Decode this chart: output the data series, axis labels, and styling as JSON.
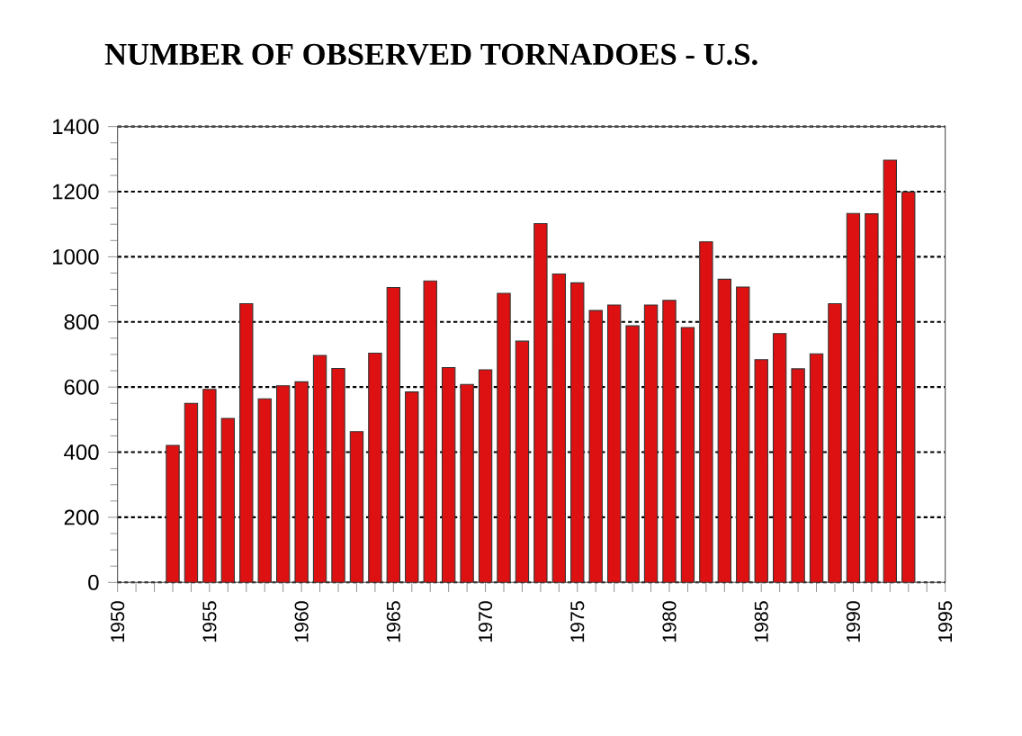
{
  "chart_data": {
    "type": "bar",
    "title": "NUMBER OF OBSERVED TORNADOES  - U.S.",
    "x": [
      1953,
      1954,
      1955,
      1956,
      1957,
      1958,
      1959,
      1960,
      1961,
      1962,
      1963,
      1964,
      1965,
      1966,
      1967,
      1968,
      1969,
      1970,
      1971,
      1972,
      1973,
      1974,
      1975,
      1976,
      1977,
      1978,
      1979,
      1980,
      1981,
      1982,
      1983,
      1984,
      1985,
      1986,
      1987,
      1988,
      1989,
      1990,
      1991,
      1992,
      1993
    ],
    "values": [
      421,
      550,
      593,
      504,
      856,
      564,
      604,
      616,
      697,
      657,
      463,
      704,
      906,
      585,
      926,
      660,
      608,
      653,
      888,
      741,
      1102,
      947,
      920,
      835,
      852,
      788,
      852,
      866,
      783,
      1046,
      931,
      907,
      684,
      764,
      656,
      702,
      856,
      1133,
      1132,
      1297,
      1199
    ],
    "color": "#dd1111",
    "xlim": [
      1950,
      1995
    ],
    "xticks": [
      1950,
      {
        "value": 1951,
        "label": null
      },
      {
        "value": 1952,
        "label": null
      },
      {
        "value": 1953,
        "label": null
      },
      {
        "value": 1954,
        "label": null
      },
      1955,
      {
        "value": 1956,
        "label": null
      },
      {
        "value": 1957,
        "label": null
      },
      {
        "value": 1958,
        "label": null
      },
      {
        "value": 1959,
        "label": null
      },
      1960,
      {
        "value": 1961,
        "label": null
      },
      {
        "value": 1962,
        "label": null
      },
      {
        "value": 1963,
        "label": null
      },
      {
        "value": 1964,
        "label": null
      },
      1965,
      {
        "value": 1966,
        "label": null
      },
      {
        "value": 1967,
        "label": null
      },
      {
        "value": 1968,
        "label": null
      },
      {
        "value": 1969,
        "label": null
      },
      1970,
      {
        "value": 1971,
        "label": null
      },
      {
        "value": 1972,
        "label": null
      },
      {
        "value": 1973,
        "label": null
      },
      {
        "value": 1974,
        "label": null
      },
      1975,
      {
        "value": 1976,
        "label": null
      },
      {
        "value": 1977,
        "label": null
      },
      {
        "value": 1978,
        "label": null
      },
      {
        "value": 1979,
        "label": null
      },
      1980,
      {
        "value": 1981,
        "label": null
      },
      {
        "value": 1982,
        "label": null
      },
      {
        "value": 1983,
        "label": null
      },
      {
        "value": 1984,
        "label": null
      },
      1985,
      {
        "value": 1986,
        "label": null
      },
      {
        "value": 1987,
        "label": null
      },
      {
        "value": 1988,
        "label": null
      },
      {
        "value": 1989,
        "label": null
      },
      1990,
      {
        "value": 1991,
        "label": null
      },
      {
        "value": 1992,
        "label": null
      },
      {
        "value": 1993,
        "label": null
      },
      {
        "value": 1994,
        "label": null
      },
      1995
    ],
    "ylim": [
      0,
      1400
    ],
    "yticks": [
      0,
      200,
      400,
      600,
      800,
      1000,
      1200,
      1400
    ],
    "grid": "y"
  }
}
